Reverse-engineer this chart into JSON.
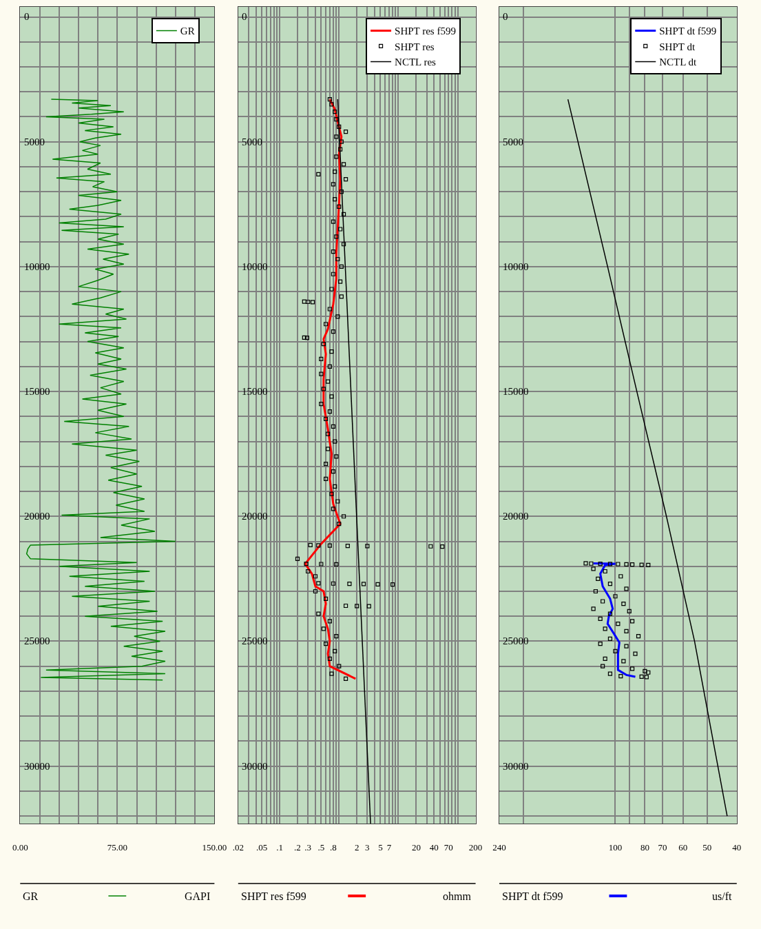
{
  "chart_data": [
    {
      "type": "line",
      "orientation": "horizontal",
      "xlabel": "GR",
      "annotations": [
        "GAPI"
      ],
      "xlim": [
        0,
        150
      ],
      "xticks": [
        {
          "value": 0,
          "label": "0.00"
        },
        {
          "value": 15,
          "label": null
        },
        {
          "value": 30,
          "label": null
        },
        {
          "value": 45,
          "label": null
        },
        {
          "value": 60,
          "label": null
        },
        {
          "value": 75,
          "label": "75.00"
        },
        {
          "value": 90,
          "label": null
        },
        {
          "value": 105,
          "label": null
        },
        {
          "value": 120,
          "label": null
        },
        {
          "value": 135,
          "label": null
        },
        {
          "value": 150,
          "label": "150.00"
        }
      ],
      "ylim": [
        32300,
        -400
      ],
      "yticks": [
        0,
        {
          "value": 1000,
          "label": null
        },
        {
          "value": 2000,
          "label": null
        },
        {
          "value": 3000,
          "label": null
        },
        {
          "value": 4000,
          "label": null
        },
        5000,
        {
          "value": 6000,
          "label": null
        },
        {
          "value": 7000,
          "label": null
        },
        {
          "value": 8000,
          "label": null
        },
        {
          "value": 9000,
          "label": null
        },
        10000,
        {
          "value": 11000,
          "label": null
        },
        {
          "value": 12000,
          "label": null
        },
        {
          "value": 13000,
          "label": null
        },
        {
          "value": 14000,
          "label": null
        },
        15000,
        {
          "value": 16000,
          "label": null
        },
        {
          "value": 17000,
          "label": null
        },
        {
          "value": 18000,
          "label": null
        },
        {
          "value": 19000,
          "label": null
        },
        20000,
        {
          "value": 21000,
          "label": null
        },
        {
          "value": 22000,
          "label": null
        },
        {
          "value": 23000,
          "label": null
        },
        {
          "value": 24000,
          "label": null
        },
        25000,
        {
          "value": 26000,
          "label": null
        },
        {
          "value": 27000,
          "label": null
        },
        {
          "value": 28000,
          "label": null
        },
        {
          "value": 29000,
          "label": null
        },
        30000,
        {
          "value": 31000,
          "label": null
        },
        {
          "value": 32000,
          "label": null
        }
      ],
      "grid": true,
      "legend": "top right",
      "series": [
        {
          "name": "GR",
          "color": "#008000",
          "line_style": "solid",
          "x": [
            3300,
            3350,
            3450,
            3550,
            3650,
            3800,
            3900,
            4000,
            4100,
            4250,
            4400,
            4550,
            4700,
            4850,
            5000,
            5150,
            5350,
            5500,
            5700,
            5850,
            6100,
            6300,
            6450,
            6600,
            6800,
            7000,
            7150,
            7350,
            7550,
            7700,
            7900,
            8100,
            8250,
            8400,
            8550,
            8700,
            8900,
            9100,
            9300,
            9500,
            9700,
            9900,
            10100,
            10300,
            10550,
            10800,
            11000,
            11250,
            11500,
            11700,
            11900,
            12100,
            12300,
            12450,
            12650,
            12800,
            13000,
            13250,
            13450,
            13700,
            13900,
            14100,
            14350,
            14600,
            14850,
            15100,
            15300,
            15500,
            15750,
            16000,
            16200,
            16400,
            16650,
            16900,
            17100,
            17350,
            17550,
            17800,
            18050,
            18300,
            18550,
            18800,
            19050,
            19300,
            19550,
            19800,
            19950,
            20100,
            20350,
            20600,
            20850,
            21000,
            21150,
            21300,
            21500,
            21700,
            21850,
            22000,
            22200,
            22400,
            22600,
            22800,
            23000,
            23200,
            23400,
            23600,
            23800,
            24000,
            24200,
            24400,
            24600,
            24800,
            25000,
            25200,
            25400,
            25600,
            25800,
            26000,
            26150,
            26300,
            26450,
            26550
          ],
          "values": [
            24,
            60,
            40,
            70,
            45,
            80,
            55,
            20,
            65,
            45,
            72,
            50,
            78,
            58,
            46,
            62,
            48,
            60,
            25,
            62,
            52,
            70,
            28,
            65,
            56,
            75,
            45,
            78,
            60,
            38,
            78,
            66,
            30,
            80,
            32,
            76,
            60,
            80,
            52,
            84,
            64,
            80,
            58,
            72,
            60,
            45,
            78,
            62,
            40,
            80,
            66,
            82,
            30,
            78,
            50,
            76,
            52,
            80,
            58,
            78,
            60,
            82,
            54,
            80,
            62,
            78,
            48,
            82,
            60,
            80,
            34,
            84,
            58,
            86,
            40,
            90,
            66,
            92,
            70,
            90,
            68,
            94,
            72,
            96,
            74,
            96,
            32,
            100,
            78,
            104,
            62,
            120,
            8,
            6,
            5,
            8,
            90,
            30,
            100,
            38,
            96,
            50,
            104,
            40,
            100,
            60,
            106,
            50,
            110,
            70,
            112,
            88,
            108,
            80,
            110,
            86,
            112,
            94,
            20,
            112,
            16,
            110
          ]
        }
      ]
    },
    {
      "type": "line",
      "orientation": "horizontal",
      "xlabel": "SHPT res f599",
      "annotations": [
        "ohmm"
      ],
      "log": "x",
      "xlim": [
        0.02,
        200
      ],
      "xticks": [
        {
          "value": 0.02,
          "label": ".02"
        },
        {
          "value": 0.03,
          "label": null
        },
        {
          "value": 0.04,
          "label": null
        },
        {
          "value": 0.05,
          "label": ".05"
        },
        {
          "value": 0.06,
          "label": null
        },
        {
          "value": 0.07,
          "label": null
        },
        {
          "value": 0.08,
          "label": null
        },
        {
          "value": 0.09,
          "label": null
        },
        {
          "value": 0.1,
          "label": ".1"
        },
        {
          "value": 0.2,
          "label": ".2"
        },
        {
          "value": 0.3,
          "label": ".3"
        },
        {
          "value": 0.4,
          "label": null
        },
        {
          "value": 0.5,
          "label": ".5"
        },
        {
          "value": 0.6,
          "label": null
        },
        {
          "value": 0.7,
          "label": null
        },
        {
          "value": 0.8,
          "label": ".8"
        },
        {
          "value": 0.9,
          "label": null
        },
        {
          "value": 1,
          "label": null
        },
        2,
        3,
        {
          "value": 4,
          "label": null
        },
        5,
        {
          "value": 6,
          "label": null
        },
        7,
        {
          "value": 8,
          "label": null
        },
        {
          "value": 9,
          "label": null
        },
        {
          "value": 10,
          "label": null
        },
        20,
        {
          "value": 30,
          "label": null
        },
        40,
        {
          "value": 50,
          "label": null
        },
        {
          "value": 60,
          "label": null
        },
        70,
        {
          "value": 80,
          "label": null
        },
        {
          "value": 90,
          "label": null
        },
        {
          "value": 100,
          "label": null
        },
        200
      ],
      "ylim": [
        32300,
        -400
      ],
      "yticks": [
        0,
        {
          "value": 1000,
          "label": null
        },
        {
          "value": 2000,
          "label": null
        },
        {
          "value": 3000,
          "label": null
        },
        {
          "value": 4000,
          "label": null
        },
        5000,
        {
          "value": 6000,
          "label": null
        },
        {
          "value": 7000,
          "label": null
        },
        {
          "value": 8000,
          "label": null
        },
        {
          "value": 9000,
          "label": null
        },
        10000,
        {
          "value": 11000,
          "label": null
        },
        {
          "value": 12000,
          "label": null
        },
        {
          "value": 13000,
          "label": null
        },
        {
          "value": 14000,
          "label": null
        },
        15000,
        {
          "value": 16000,
          "label": null
        },
        {
          "value": 17000,
          "label": null
        },
        {
          "value": 18000,
          "label": null
        },
        {
          "value": 19000,
          "label": null
        },
        20000,
        {
          "value": 21000,
          "label": null
        },
        {
          "value": 22000,
          "label": null
        },
        {
          "value": 23000,
          "label": null
        },
        {
          "value": 24000,
          "label": null
        },
        25000,
        {
          "value": 26000,
          "label": null
        },
        {
          "value": 27000,
          "label": null
        },
        {
          "value": 28000,
          "label": null
        },
        {
          "value": 29000,
          "label": null
        },
        30000,
        {
          "value": 31000,
          "label": null
        },
        {
          "value": 32000,
          "label": null
        }
      ],
      "grid": true,
      "legend": "top right",
      "series": [
        {
          "name": "SHPT res f599",
          "color": "#ff0000",
          "line_style": "solid",
          "x": [
            3300,
            3700,
            4200,
            4800,
            5500,
            6500,
            7500,
            8500,
            9500,
            10500,
            11500,
            12500,
            12900,
            13500,
            14500,
            15500,
            16500,
            17500,
            18500,
            19500,
            20300,
            21100,
            21900,
            22300,
            22800,
            23000,
            23500,
            24000,
            24500,
            25000,
            25500,
            26000,
            26500
          ],
          "values": [
            0.7,
            0.85,
            0.95,
            1.1,
            1.0,
            1.05,
            1.0,
            0.95,
            0.9,
            0.9,
            0.8,
            0.65,
            0.55,
            0.6,
            0.55,
            0.55,
            0.65,
            0.75,
            0.7,
            0.8,
            1.05,
            0.5,
            0.27,
            0.35,
            0.4,
            0.55,
            0.6,
            0.55,
            0.65,
            0.7,
            0.65,
            0.7,
            1.9
          ]
        },
        {
          "name": "SHPT res",
          "color": "#000000",
          "type": "scatter",
          "marker": "square",
          "x": [
            3300,
            3500,
            3800,
            4100,
            4400,
            4600,
            4800,
            5000,
            5300,
            5600,
            5900,
            6200,
            6300,
            6500,
            6700,
            7000,
            7300,
            7600,
            7900,
            8200,
            8500,
            8800,
            9100,
            9400,
            9700,
            10000,
            10300,
            10600,
            10900,
            11200,
            11400,
            11410,
            11420,
            11700,
            12000,
            12300,
            12600,
            12840,
            12850,
            13100,
            13400,
            13700,
            14000,
            14300,
            14600,
            14900,
            15200,
            15500,
            15800,
            16100,
            16400,
            16700,
            17000,
            17300,
            17600,
            17900,
            18200,
            18500,
            18800,
            19100,
            19400,
            19700,
            20000,
            20300,
            21150,
            21160,
            21170,
            21180,
            21190,
            21200,
            21210,
            21700,
            21900,
            21910,
            21920,
            22200,
            22400,
            22680,
            22690,
            22700,
            22710,
            22720,
            22730,
            23000,
            23300,
            23580,
            23590,
            23600,
            23900,
            24200,
            24500,
            24800,
            25100,
            25400,
            25700,
            26000,
            26300,
            26500
          ],
          "values": [
            0.7,
            0.75,
            0.85,
            0.9,
            1.0,
            1.3,
            0.9,
            1.1,
            1.05,
            0.9,
            1.2,
            0.85,
            0.45,
            1.3,
            0.8,
            1.1,
            0.85,
            1.0,
            1.2,
            0.8,
            1.05,
            0.9,
            1.2,
            0.8,
            0.95,
            1.1,
            0.8,
            1.05,
            0.75,
            1.1,
            0.26,
            0.3,
            0.36,
            0.7,
            0.95,
            0.6,
            0.8,
            0.26,
            0.29,
            0.55,
            0.75,
            0.5,
            0.7,
            0.5,
            0.65,
            0.55,
            0.75,
            0.5,
            0.7,
            0.6,
            0.8,
            0.65,
            0.85,
            0.65,
            0.9,
            0.6,
            0.8,
            0.6,
            0.85,
            0.75,
            0.95,
            0.8,
            1.2,
            1.0,
            0.33,
            0.45,
            0.7,
            1.4,
            3,
            35,
            55,
            0.2,
            0.28,
            0.5,
            0.9,
            0.3,
            0.4,
            0.45,
            0.8,
            1.5,
            2.6,
            4.5,
            8,
            0.4,
            0.6,
            1.3,
            2.0,
            3.2,
            0.45,
            0.7,
            0.55,
            0.9,
            0.6,
            0.85,
            0.7,
            1.0,
            0.75,
            1.3
          ]
        },
        {
          "name": "NCTL res",
          "color": "#000000",
          "line_style": "solid",
          "x": [
            3300,
            32300
          ],
          "values": [
            0.95,
            3.4
          ]
        }
      ]
    },
    {
      "type": "line",
      "orientation": "horizontal",
      "xlabel": "SHPT dt f599",
      "annotations": [
        "us/ft"
      ],
      "log": "x",
      "xlim": [
        240,
        40
      ],
      "xticks": [
        240,
        {
          "value": 200,
          "label": null
        },
        100,
        {
          "value": 90,
          "label": null
        },
        80,
        70,
        60,
        50,
        40
      ],
      "ylim": [
        32300,
        -400
      ],
      "yticks": [
        0,
        {
          "value": 1000,
          "label": null
        },
        {
          "value": 2000,
          "label": null
        },
        {
          "value": 3000,
          "label": null
        },
        {
          "value": 4000,
          "label": null
        },
        5000,
        {
          "value": 6000,
          "label": null
        },
        {
          "value": 7000,
          "label": null
        },
        {
          "value": 8000,
          "label": null
        },
        {
          "value": 9000,
          "label": null
        },
        10000,
        {
          "value": 11000,
          "label": null
        },
        {
          "value": 12000,
          "label": null
        },
        {
          "value": 13000,
          "label": null
        },
        {
          "value": 14000,
          "label": null
        },
        15000,
        {
          "value": 16000,
          "label": null
        },
        {
          "value": 17000,
          "label": null
        },
        {
          "value": 18000,
          "label": null
        },
        {
          "value": 19000,
          "label": null
        },
        20000,
        {
          "value": 21000,
          "label": null
        },
        {
          "value": 22000,
          "label": null
        },
        {
          "value": 23000,
          "label": null
        },
        {
          "value": 24000,
          "label": null
        },
        25000,
        {
          "value": 26000,
          "label": null
        },
        {
          "value": 27000,
          "label": null
        },
        {
          "value": 28000,
          "label": null
        },
        {
          "value": 29000,
          "label": null
        },
        30000,
        {
          "value": 31000,
          "label": null
        },
        {
          "value": 32000,
          "label": null
        }
      ],
      "grid": true,
      "legend": "top right",
      "series": [
        {
          "name": "SHPT dt f599",
          "color": "#0000ff",
          "line_style": "solid",
          "x": [
            21880,
            21900,
            21950,
            22300,
            22800,
            23300,
            23700,
            24000,
            24300,
            24700,
            25050,
            25500,
            26150,
            26350,
            26420
          ],
          "values": [
            118,
            100,
            108,
            112,
            110,
            104,
            102,
            105,
            106,
            101,
            97,
            98,
            98,
            92,
            86
          ]
        },
        {
          "name": "SHPT dt",
          "color": "#000000",
          "type": "scatter",
          "marker": "square",
          "x": [
            21880,
            21890,
            21900,
            21905,
            21910,
            21920,
            21930,
            21940,
            21950,
            22100,
            22200,
            22400,
            22500,
            22700,
            22900,
            23000,
            23200,
            23400,
            23500,
            23700,
            23800,
            23900,
            24100,
            24200,
            24300,
            24500,
            24600,
            24800,
            24900,
            25100,
            25200,
            25400,
            25500,
            25700,
            25800,
            26000,
            26100,
            26200,
            26250,
            26300,
            26400,
            26420,
            26430
          ],
          "values": [
            125,
            120,
            112,
            104,
            98,
            92,
            88,
            82,
            78,
            118,
            108,
            96,
            114,
            104,
            92,
            116,
            100,
            110,
            94,
            118,
            90,
            104,
            112,
            88,
            98,
            108,
            92,
            84,
            104,
            112,
            92,
            100,
            86,
            108,
            94,
            110,
            88,
            80,
            78,
            104,
            96,
            82,
            79
          ]
        },
        {
          "name": "NCTL dt",
          "color": "#000000",
          "line_style": "solid",
          "x": [
            3300,
            10000,
            15000,
            20000,
            25000,
            32000
          ],
          "values": [
            143,
            106,
            85,
            68,
            55,
            43
          ]
        }
      ]
    }
  ]
}
